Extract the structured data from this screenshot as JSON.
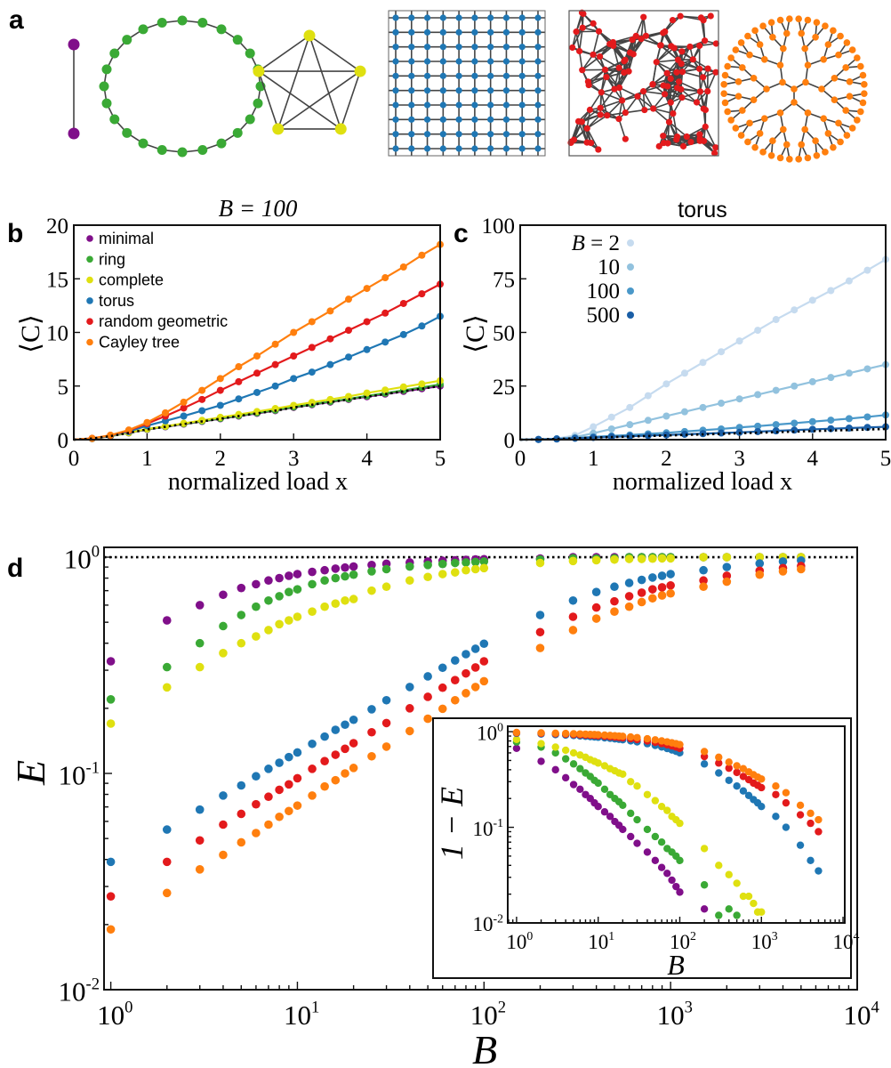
{
  "panel_labels": {
    "a": "a",
    "b": "b",
    "c": "c",
    "d": "d"
  },
  "colors": {
    "minimal": "#800f8a",
    "ring": "#3aa935",
    "complete": "#dfe010",
    "torus": "#1f77b4",
    "random_geometric": "#e31a1c",
    "cayley_tree": "#ff7f0e",
    "edge": "#444444",
    "reference": "#000000"
  },
  "networks": [
    "minimal",
    "ring",
    "complete",
    "torus",
    "random geometric",
    "Cayley tree"
  ],
  "chart_data": [
    {
      "panel": "b",
      "type": "line",
      "title": "B = 100",
      "xlabel": "normalized load x",
      "ylabel": "⟨C⟩",
      "xlim": [
        0,
        5
      ],
      "ylim": [
        0,
        20
      ],
      "xticks": [
        "0",
        "1",
        "2",
        "3",
        "4",
        "5"
      ],
      "yticks": [
        "0",
        "5",
        "10",
        "15",
        "20"
      ],
      "grid": false,
      "legend_position": "top-left",
      "x": [
        0.25,
        0.5,
        0.75,
        1,
        1.25,
        1.5,
        1.75,
        2,
        2.25,
        2.5,
        2.75,
        3,
        3.25,
        3.5,
        3.75,
        4,
        4.25,
        4.5,
        4.75,
        5
      ],
      "series": [
        {
          "name": "minimal",
          "color": "#800f8a",
          "values": [
            0.1,
            0.33,
            0.63,
            0.95,
            1.2,
            1.45,
            1.7,
            1.95,
            2.2,
            2.45,
            2.7,
            3.0,
            3.25,
            3.5,
            3.75,
            4.0,
            4.25,
            4.5,
            4.75,
            5.0
          ]
        },
        {
          "name": "ring",
          "color": "#3aa935",
          "values": [
            0.1,
            0.33,
            0.64,
            0.97,
            1.22,
            1.48,
            1.73,
            1.98,
            2.24,
            2.5,
            2.75,
            3.05,
            3.3,
            3.55,
            3.8,
            4.07,
            4.33,
            4.6,
            4.87,
            5.15
          ]
        },
        {
          "name": "complete",
          "color": "#dfe010",
          "values": [
            0.1,
            0.33,
            0.65,
            1.0,
            1.25,
            1.52,
            1.8,
            2.08,
            2.35,
            2.62,
            2.9,
            3.2,
            3.48,
            3.75,
            4.03,
            4.35,
            4.63,
            4.92,
            5.2,
            5.5
          ]
        },
        {
          "name": "torus",
          "color": "#1f77b4",
          "values": [
            0.1,
            0.35,
            0.75,
            1.3,
            1.75,
            2.2,
            2.7,
            3.2,
            3.8,
            4.4,
            5.0,
            5.7,
            6.3,
            7.0,
            7.7,
            8.4,
            9.1,
            9.8,
            10.6,
            11.5
          ]
        },
        {
          "name": "random geometric",
          "color": "#e31a1c",
          "values": [
            0.12,
            0.4,
            0.85,
            1.5,
            2.2,
            2.95,
            3.75,
            4.6,
            5.4,
            6.2,
            7.0,
            7.8,
            8.6,
            9.4,
            10.2,
            11.0,
            11.8,
            12.7,
            13.6,
            14.5
          ]
        },
        {
          "name": "Cayley tree",
          "color": "#ff7f0e",
          "values": [
            0.12,
            0.42,
            0.9,
            1.6,
            2.5,
            3.5,
            4.6,
            5.7,
            6.8,
            7.8,
            8.9,
            10.0,
            11.0,
            12.0,
            13.1,
            14.1,
            15.1,
            16.1,
            17.2,
            18.2
          ]
        }
      ],
      "reference_curve": {
        "style": "dotted",
        "values": [
          0.1,
          0.33,
          0.63,
          0.95,
          1.2,
          1.45,
          1.7,
          1.95,
          2.2,
          2.45,
          2.7,
          3.0,
          3.25,
          3.5,
          3.75,
          4.0,
          4.25,
          4.5,
          4.75,
          5.0
        ]
      }
    },
    {
      "panel": "c",
      "type": "line",
      "title": "torus",
      "xlabel": "normalized load x",
      "ylabel": "⟨C⟩",
      "xlim": [
        0,
        5
      ],
      "ylim": [
        0,
        100
      ],
      "xticks": [
        "0",
        "1",
        "2",
        "3",
        "4",
        "5"
      ],
      "yticks": [
        "0",
        "25",
        "50",
        "75",
        "100"
      ],
      "grid": false,
      "legend_position": "top-left",
      "x": [
        0.25,
        0.5,
        0.75,
        1,
        1.25,
        1.5,
        1.75,
        2,
        2.25,
        2.5,
        2.75,
        3,
        3.25,
        3.5,
        3.75,
        4,
        4.25,
        4.5,
        4.75,
        5
      ],
      "series": [
        {
          "name": "B = 2",
          "color": "#c6dbef",
          "values": [
            0.1,
            0.5,
            2,
            6,
            10.5,
            15,
            20.5,
            26,
            31,
            36,
            41,
            46,
            51,
            56,
            60.5,
            65,
            69.5,
            74,
            79,
            84
          ]
        },
        {
          "name": "10",
          "color": "#92c2de",
          "values": [
            0.1,
            0.4,
            1.2,
            3,
            5,
            7,
            9,
            11,
            13,
            15,
            17,
            19,
            21,
            23,
            25,
            27,
            29,
            31,
            33,
            35
          ]
        },
        {
          "name": "100",
          "color": "#4a98c9",
          "values": [
            0.1,
            0.35,
            0.75,
            1.3,
            1.75,
            2.2,
            2.7,
            3.2,
            3.8,
            4.4,
            5.0,
            5.7,
            6.3,
            7.0,
            7.7,
            8.4,
            9.1,
            9.8,
            10.6,
            11.5
          ]
        },
        {
          "name": "500",
          "color": "#1a5ea6",
          "values": [
            0.1,
            0.3,
            0.65,
            1.0,
            1.3,
            1.6,
            1.9,
            2.2,
            2.5,
            2.8,
            3.1,
            3.4,
            3.75,
            4.1,
            4.45,
            4.8,
            5.1,
            5.4,
            5.7,
            6.0
          ]
        }
      ],
      "reference_curve": {
        "style": "dotted",
        "values": [
          0.1,
          0.33,
          0.63,
          0.95,
          1.2,
          1.45,
          1.7,
          1.95,
          2.2,
          2.45,
          2.7,
          3.0,
          3.25,
          3.5,
          3.75,
          4.0,
          4.25,
          4.5,
          4.75,
          5.0
        ]
      }
    },
    {
      "panel": "d",
      "type": "scatter",
      "xlabel": "B",
      "ylabel": "E",
      "xscale": "log",
      "yscale": "log",
      "xlim": [
        0.92,
        10000
      ],
      "ylim": [
        0.01,
        1.11
      ],
      "xticks": [
        "10^0",
        "10^1",
        "10^2",
        "10^3",
        "10^4"
      ],
      "yticks": [
        "10^0",
        "10^-1",
        "10^-2"
      ],
      "grid": false,
      "reference_line": {
        "y": 1,
        "style": "dotted"
      },
      "x": [
        1,
        2,
        3,
        4,
        5,
        6,
        7,
        8,
        9,
        10,
        12,
        14,
        16,
        18,
        20,
        25,
        30,
        40,
        50,
        60,
        70,
        80,
        90,
        100,
        200,
        300,
        400,
        500,
        600,
        700,
        800,
        900,
        1000,
        1500,
        2000,
        3000,
        4000,
        5000
      ],
      "series": [
        {
          "name": "minimal",
          "color": "#800f8a",
          "values": [
            0.33,
            0.51,
            0.6,
            0.67,
            0.72,
            0.75,
            0.78,
            0.8,
            0.82,
            0.835,
            0.855,
            0.87,
            0.885,
            0.895,
            0.905,
            0.92,
            0.932,
            0.945,
            0.955,
            0.962,
            0.967,
            0.972,
            0.976,
            0.979,
            0.986,
            1,
            1,
            1,
            1,
            1,
            1,
            1,
            1,
            1,
            1,
            1,
            1,
            1
          ]
        },
        {
          "name": "ring",
          "color": "#3aa935",
          "values": [
            0.22,
            0.31,
            0.4,
            0.48,
            0.54,
            0.59,
            0.63,
            0.66,
            0.69,
            0.71,
            0.75,
            0.78,
            0.8,
            0.815,
            0.83,
            0.86,
            0.88,
            0.905,
            0.92,
            0.93,
            0.94,
            0.945,
            0.95,
            0.955,
            0.975,
            0.988,
            0.986,
            0.988,
            1,
            1,
            1,
            1,
            1,
            1,
            1,
            1,
            1,
            1
          ]
        },
        {
          "name": "complete",
          "color": "#dfe010",
          "values": [
            0.17,
            0.25,
            0.31,
            0.36,
            0.4,
            0.43,
            0.46,
            0.49,
            0.51,
            0.53,
            0.56,
            0.59,
            0.61,
            0.63,
            0.64,
            0.7,
            0.73,
            0.78,
            0.81,
            0.835,
            0.85,
            0.87,
            0.88,
            0.89,
            0.94,
            0.96,
            0.968,
            0.974,
            0.981,
            0.981,
            0.984,
            0.987,
            0.987,
            1,
            1,
            1,
            1,
            1
          ]
        },
        {
          "name": "torus",
          "color": "#1f77b4",
          "values": [
            0.039,
            0.055,
            0.068,
            0.079,
            0.088,
            0.097,
            0.105,
            0.112,
            0.119,
            0.125,
            0.137,
            0.148,
            0.159,
            0.168,
            0.177,
            0.198,
            0.218,
            0.251,
            0.281,
            0.308,
            0.333,
            0.356,
            0.377,
            0.398,
            0.54,
            0.63,
            0.69,
            0.73,
            0.76,
            0.785,
            0.805,
            0.82,
            0.835,
            0.87,
            0.9,
            0.935,
            0.955,
            0.965
          ]
        },
        {
          "name": "random geometric",
          "color": "#e31a1c",
          "values": [
            0.027,
            0.039,
            0.049,
            0.058,
            0.065,
            0.072,
            0.078,
            0.084,
            0.089,
            0.095,
            0.105,
            0.114,
            0.122,
            0.13,
            0.138,
            0.155,
            0.171,
            0.2,
            0.226,
            0.249,
            0.27,
            0.29,
            0.309,
            0.33,
            0.45,
            0.53,
            0.585,
            0.625,
            0.66,
            0.685,
            0.71,
            0.725,
            0.74,
            0.78,
            0.82,
            0.865,
            0.89,
            0.91
          ]
        },
        {
          "name": "Cayley tree",
          "color": "#ff7f0e",
          "values": [
            0.019,
            0.028,
            0.036,
            0.042,
            0.048,
            0.053,
            0.058,
            0.063,
            0.067,
            0.071,
            0.079,
            0.087,
            0.093,
            0.1,
            0.106,
            0.12,
            0.133,
            0.157,
            0.179,
            0.199,
            0.218,
            0.235,
            0.251,
            0.267,
            0.38,
            0.46,
            0.52,
            0.56,
            0.59,
            0.62,
            0.645,
            0.665,
            0.68,
            0.73,
            0.77,
            0.83,
            0.86,
            0.88
          ]
        }
      ],
      "inset": {
        "type": "scatter",
        "quantity": "1 - E",
        "xlabel": "B",
        "ylabel": "1 − E",
        "xscale": "log",
        "yscale": "log",
        "xlim": [
          0.78,
          10500
        ],
        "ylim": [
          0.01,
          1.14
        ],
        "xticks": [
          "10^0",
          "10^1",
          "10^2",
          "10^3",
          "10^4"
        ],
        "yticks": [
          "10^0",
          "10^-1",
          "10^-2"
        ]
      }
    }
  ]
}
